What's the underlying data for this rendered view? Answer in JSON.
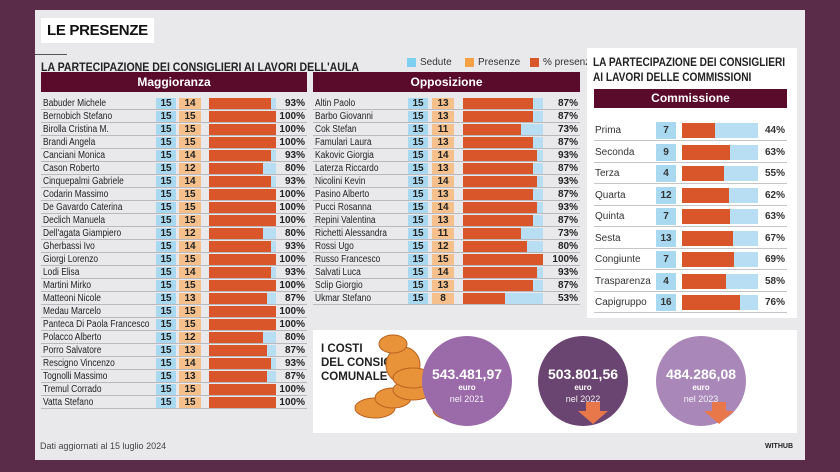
{
  "title": "LE PRESENZE",
  "aula": {
    "subtitle": "LA PARTECIPAZIONE DEI CONSIGLIERI AI LAVORI DELL'AULA",
    "legend": [
      {
        "label": "Sedute",
        "color": "#7fd0f0"
      },
      {
        "label": "Presenze",
        "color": "#f4a044"
      },
      {
        "label": "% presenze",
        "color": "#d9552a"
      }
    ],
    "groups": [
      {
        "name": "Maggioranza",
        "rows": [
          [
            "Babuder Michele",
            15,
            14,
            "93%"
          ],
          [
            "Bernobich Stefano",
            15,
            15,
            "100%"
          ],
          [
            "Birolla Cristina M.",
            15,
            15,
            "100%"
          ],
          [
            "Brandi Angela",
            15,
            15,
            "100%"
          ],
          [
            "Canciani Monica",
            15,
            14,
            "93%"
          ],
          [
            "Cason Roberto",
            15,
            12,
            "80%"
          ],
          [
            "Cinquepalmi Gabriele",
            15,
            14,
            "93%"
          ],
          [
            "Codarin Massimo",
            15,
            15,
            "100%"
          ],
          [
            "De Gavardo Caterina",
            15,
            15,
            "100%"
          ],
          [
            "Declich Manuela",
            15,
            15,
            "100%"
          ],
          [
            "Dell'agata Giampiero",
            15,
            12,
            "80%"
          ],
          [
            "Gherbassi Ivo",
            15,
            14,
            "93%"
          ],
          [
            "Giorgi Lorenzo",
            15,
            15,
            "100%"
          ],
          [
            "Lodi Elisa",
            15,
            14,
            "93%"
          ],
          [
            "Martini Mirko",
            15,
            15,
            "100%"
          ],
          [
            "Matteoni Nicole",
            15,
            13,
            "87%"
          ],
          [
            "Medau Marcelo",
            15,
            15,
            "100%"
          ],
          [
            "Panteca Di Paola Francesco",
            15,
            15,
            "100%"
          ],
          [
            "Polacco Alberto",
            15,
            12,
            "80%"
          ],
          [
            "Porro Salvatore",
            15,
            13,
            "87%"
          ],
          [
            "Rescigno Vincenzo",
            15,
            14,
            "93%"
          ],
          [
            "Tognolli Massimo",
            15,
            13,
            "87%"
          ],
          [
            "Tremul Corrado",
            15,
            15,
            "100%"
          ],
          [
            "Vatta Stefano",
            15,
            15,
            "100%"
          ]
        ]
      },
      {
        "name": "Opposizione",
        "rows": [
          [
            "Altin Paolo",
            15,
            13,
            "87%"
          ],
          [
            "Barbo Giovanni",
            15,
            13,
            "87%"
          ],
          [
            "Cok Stefan",
            15,
            11,
            "73%"
          ],
          [
            "Famulari Laura",
            15,
            13,
            "87%"
          ],
          [
            "Kakovic Giorgia",
            15,
            14,
            "93%"
          ],
          [
            "Laterza Riccardo",
            15,
            13,
            "87%"
          ],
          [
            "Nicolini Kevin",
            15,
            14,
            "93%"
          ],
          [
            "Pasino Alberto",
            15,
            13,
            "87%"
          ],
          [
            "Pucci Rosanna",
            15,
            14,
            "93%"
          ],
          [
            "Repini Valentina",
            15,
            13,
            "87%"
          ],
          [
            "Richetti Alessandra",
            15,
            11,
            "73%"
          ],
          [
            "Rossi Ugo",
            15,
            12,
            "80%"
          ],
          [
            "Russo Francesco",
            15,
            15,
            "100%"
          ],
          [
            "Salvati Luca",
            15,
            14,
            "93%"
          ],
          [
            "Sclip Giorgio",
            15,
            13,
            "87%"
          ],
          [
            "Ukmar Stefano",
            15,
            8,
            "53%"
          ]
        ]
      }
    ]
  },
  "commissioni": {
    "title_line1": "LA PARTECIPAZIONE DEI CONSIGLIERI",
    "title_line2": "AI LAVORI DELLE COMMISSIONI",
    "header": "Commissione",
    "rows": [
      [
        "Prima",
        7,
        "44%"
      ],
      [
        "Seconda",
        9,
        "63%"
      ],
      [
        "Terza",
        4,
        "55%"
      ],
      [
        "Quarta",
        12,
        "62%"
      ],
      [
        "Quinta",
        7,
        "63%"
      ],
      [
        "Sesta",
        13,
        "67%"
      ],
      [
        "Congiunte",
        7,
        "69%"
      ],
      [
        "Trasparenza",
        4,
        "58%"
      ],
      [
        "Capigruppo",
        16,
        "76%"
      ]
    ]
  },
  "costi": {
    "title_lines": [
      "I COSTI",
      "DEL CONSIGLIO",
      "COMUNALE"
    ],
    "items": [
      {
        "value": "543.481,97",
        "unit": "euro",
        "year": "nel 2021",
        "color": "#9b6aa9"
      },
      {
        "value": "503.801,56",
        "unit": "euro",
        "year": "nel 2022",
        "color": "#6b4571"
      },
      {
        "value": "484.286,08",
        "unit": "euro",
        "year": "nel 2023",
        "color": "#a987b9"
      }
    ]
  },
  "footer": {
    "note": "Dati aggiornati al 15 luglio 2024",
    "brand": "WITHUB"
  }
}
